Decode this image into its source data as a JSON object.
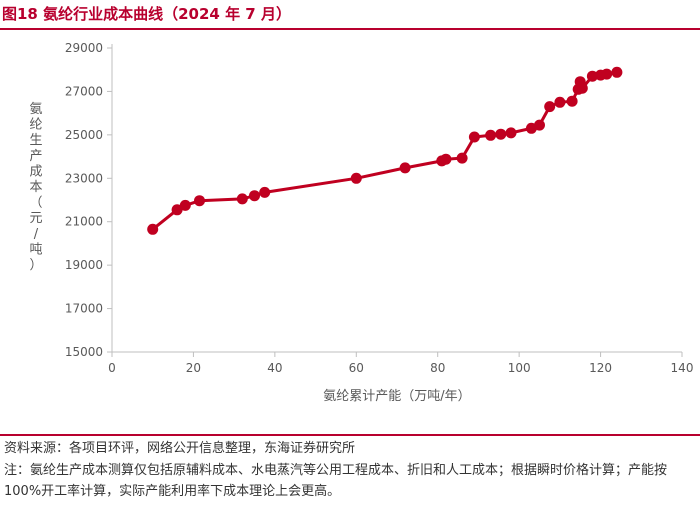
{
  "header": {
    "title": "图18  氨纶行业成本曲线（2024 年 7 月）"
  },
  "footer": {
    "source": "资料来源：各项目环评，网络公开信息整理，东海证券研究所",
    "note": "注：氨纶生产成本测算仅包括原辅料成本、水电蒸汽等公用工程成本、折旧和人工成本；根据瞬时价格计算；产能按 100%开工率计算，实际产能利用率下成本理论上会更高。"
  },
  "chart_data": {
    "type": "line",
    "xlabel": "氨纶累计产能（万吨/年）",
    "ylabel": "氨纶生产成本（元/吨）",
    "xlim": [
      0,
      140
    ],
    "ylim": [
      15000,
      29000
    ],
    "xticks": [
      0,
      20,
      40,
      60,
      80,
      100,
      120,
      140
    ],
    "yticks": [
      15000,
      17000,
      19000,
      21000,
      23000,
      25000,
      27000,
      29000
    ],
    "grid": false,
    "legend": "none",
    "series": [
      {
        "color": "#c00020",
        "points": [
          [
            10,
            20650
          ],
          [
            16,
            21550
          ],
          [
            18,
            21750
          ],
          [
            21.5,
            21970
          ],
          [
            32,
            22050
          ],
          [
            35,
            22200
          ],
          [
            37.5,
            22350
          ],
          [
            60,
            23000
          ],
          [
            72,
            23480
          ],
          [
            81,
            23800
          ],
          [
            82,
            23880
          ],
          [
            86,
            23930
          ],
          [
            89,
            24900
          ],
          [
            93,
            24980
          ],
          [
            95.5,
            25030
          ],
          [
            98,
            25090
          ],
          [
            103,
            25300
          ],
          [
            105,
            25450
          ],
          [
            107.5,
            26300
          ],
          [
            110,
            26500
          ],
          [
            113,
            26550
          ],
          [
            114.5,
            27100
          ],
          [
            115,
            27450
          ],
          [
            115.5,
            27150
          ],
          [
            118,
            27700
          ],
          [
            120,
            27750
          ],
          [
            121.5,
            27800
          ],
          [
            124,
            27880
          ]
        ]
      }
    ]
  }
}
